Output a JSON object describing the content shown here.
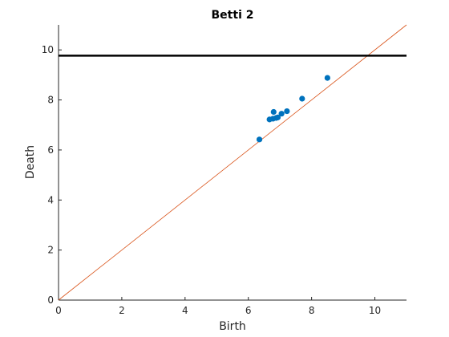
{
  "chart_data": {
    "type": "scatter",
    "title": "Betti 2",
    "xlabel": "Birth",
    "ylabel": "Death",
    "xlim": [
      0,
      11
    ],
    "ylim": [
      0,
      11
    ],
    "xticks": [
      0,
      2,
      4,
      6,
      8,
      10
    ],
    "yticks": [
      0,
      2,
      4,
      6,
      8,
      10
    ],
    "xtick_labels": [
      "0",
      "2",
      "4",
      "6",
      "8",
      "10"
    ],
    "ytick_labels": [
      "0",
      "2",
      "4",
      "6",
      "8",
      "10"
    ],
    "grid": false,
    "points": [
      {
        "x": 6.35,
        "y": 6.42
      },
      {
        "x": 6.67,
        "y": 7.22
      },
      {
        "x": 6.78,
        "y": 7.25
      },
      {
        "x": 6.8,
        "y": 7.52
      },
      {
        "x": 6.88,
        "y": 7.28
      },
      {
        "x": 6.93,
        "y": 7.3
      },
      {
        "x": 7.05,
        "y": 7.45
      },
      {
        "x": 7.22,
        "y": 7.55
      },
      {
        "x": 7.7,
        "y": 8.05
      },
      {
        "x": 8.5,
        "y": 8.88
      }
    ],
    "infinity_line_y": 9.77,
    "diagonal": true,
    "colors": {
      "points": "#0072BD",
      "diagonal": "#D95319",
      "infinity_line": "#000000",
      "axes": "#262626"
    }
  }
}
